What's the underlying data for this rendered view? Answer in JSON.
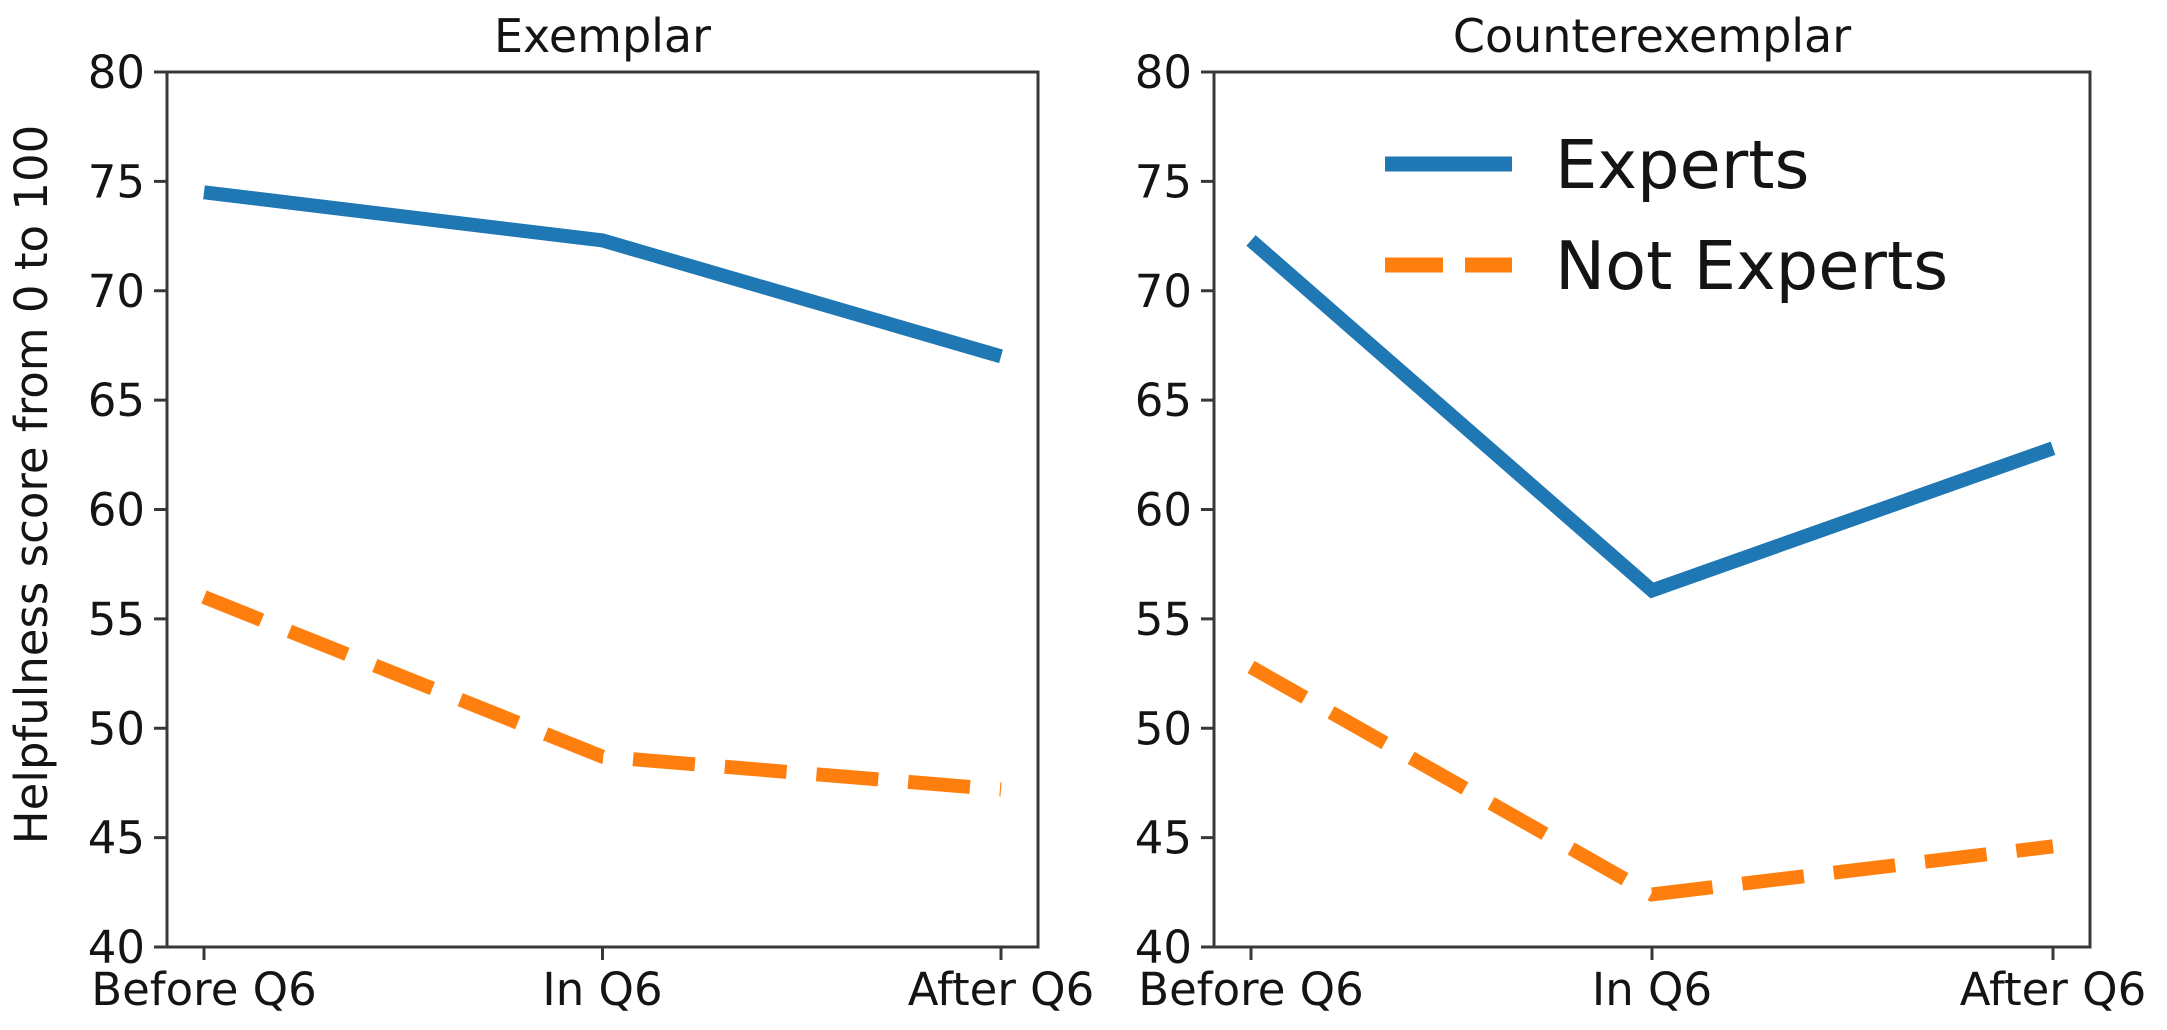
{
  "figure": {
    "background": "#ffffff"
  },
  "chart_data": [
    {
      "type": "line",
      "title": "Exemplar",
      "categories": [
        "Before Q6",
        "In Q6",
        "After Q6"
      ],
      "series": [
        {
          "name": "Experts",
          "values": [
            74.5,
            72.3,
            67.0
          ],
          "color": "#1f77b4",
          "style": "solid"
        },
        {
          "name": "Not Experts",
          "values": [
            56.0,
            48.7,
            47.2
          ],
          "color": "#ff7f0e",
          "style": "dashed"
        }
      ],
      "xlabel": "",
      "ylabel": "Helpfulness score from 0 to 100",
      "ylim": [
        40,
        80
      ],
      "yticks": [
        40,
        45,
        50,
        55,
        60,
        65,
        70,
        75,
        80
      ],
      "grid": false,
      "legend": false
    },
    {
      "type": "line",
      "title": "Counterexemplar",
      "categories": [
        "Before Q6",
        "In Q6",
        "After Q6"
      ],
      "series": [
        {
          "name": "Experts",
          "values": [
            72.3,
            56.3,
            62.8
          ],
          "color": "#1f77b4",
          "style": "solid"
        },
        {
          "name": "Not Experts",
          "values": [
            52.8,
            42.4,
            44.6
          ],
          "color": "#ff7f0e",
          "style": "dashed"
        }
      ],
      "xlabel": "",
      "ylabel": "",
      "ylim": [
        40,
        80
      ],
      "yticks": [
        40,
        45,
        50,
        55,
        60,
        65,
        70,
        75,
        80
      ],
      "grid": false,
      "legend": true,
      "legend_position": "upper left inside"
    }
  ]
}
